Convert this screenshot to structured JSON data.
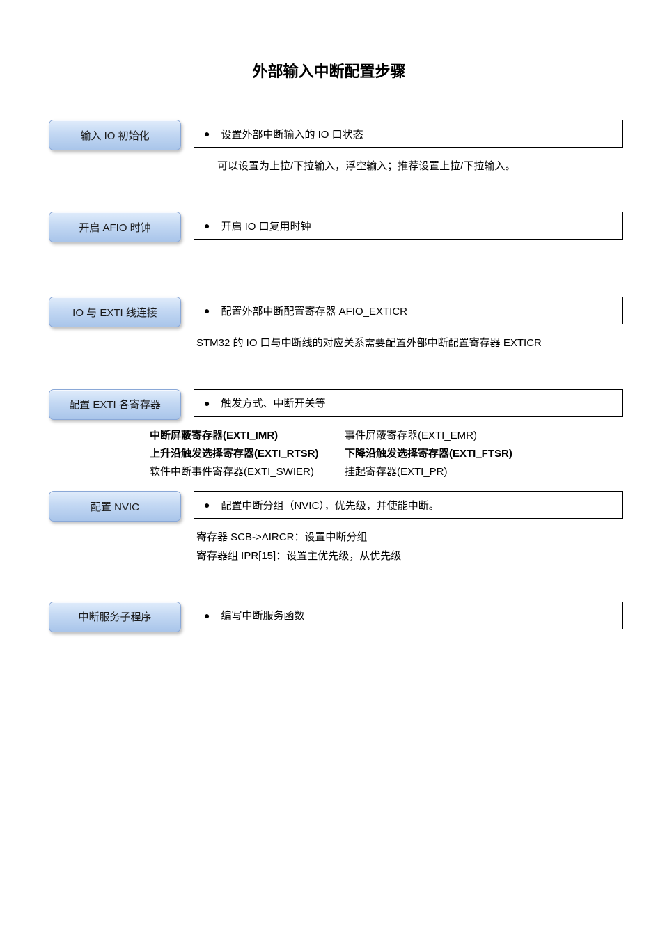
{
  "title": "外部输入中断配置步骤",
  "colors": {
    "box_border": "#8aa8d7",
    "box_grad_top": "#e0ecfb",
    "box_grad_mid": "#c3d8f3",
    "box_grad_bot": "#a9c5ea",
    "text": "#000000",
    "page_bg": "#ffffff",
    "desc_border": "#000000"
  },
  "steps": [
    {
      "label": "输入 IO 初始化",
      "desc": "设置外部中断输入的 IO 口状态",
      "note": "可以设置为上拉/下拉输入，浮空输入；推荐设置上拉/下拉输入。"
    },
    {
      "label": "开启 AFIO 时钟",
      "desc": "开启 IO 口复用时钟",
      "note": ""
    },
    {
      "label": "IO 与 EXTI 线连接",
      "desc": "配置外部中断配置寄存器 AFIO_EXTICR",
      "note": "STM32 的 IO 口与中断线的对应关系需要配置外部中断配置寄存器 EXTICR"
    },
    {
      "label": "配置 EXTI 各寄存器",
      "desc": "触发方式、中断开关等",
      "registers": {
        "row1_l": "中断屏蔽寄存器(EXTI_IMR)",
        "row1_r": "事件屏蔽寄存器(EXTI_EMR)",
        "row2_l": "上升沿触发选择寄存器(EXTI_RTSR)",
        "row2_r": "下降沿触发选择寄存器(EXTI_FTSR)",
        "row3_l": "软件中断事件寄存器(EXTI_SWIER)",
        "row3_r": "挂起寄存器(EXTI_PR)"
      }
    },
    {
      "label": "配置 NVIC",
      "desc": "配置中断分组（NVIC），优先级，并使能中断。",
      "note_line1": "寄存器 SCB->AIRCR：设置中断分组",
      "note_line2": "寄存器组 IPR[15]：设置主优先级，从优先级"
    },
    {
      "label": "中断服务子程序",
      "desc": "编写中断服务函数",
      "note": ""
    }
  ]
}
